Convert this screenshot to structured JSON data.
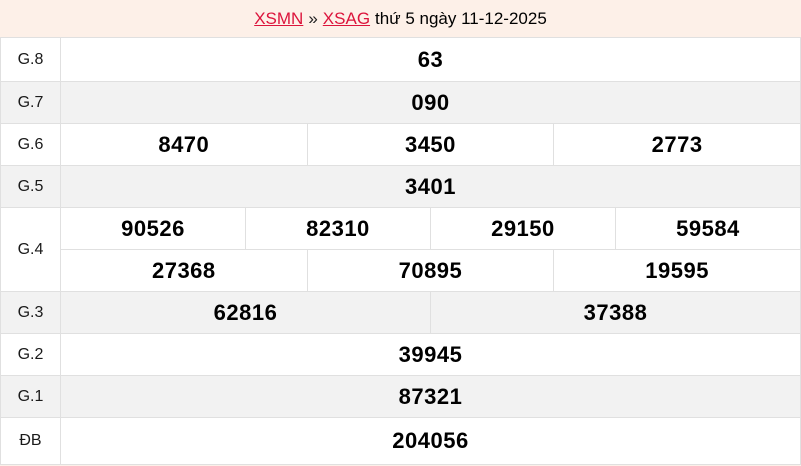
{
  "header": {
    "region_link": "XSMN",
    "separator": "»",
    "province_link": "XSAG",
    "draw_info": "thứ 5 ngày 11-12-2025"
  },
  "colors": {
    "page_background": "#fdf0e8",
    "link_crimson": "#dc143c",
    "highlight_red": "#e74c3c",
    "stripe_gray": "#f2f2f2",
    "border_gray": "#e0e0e0"
  },
  "table": {
    "rows": [
      {
        "label": "G.8",
        "values": [
          "63"
        ],
        "highlight": true
      },
      {
        "label": "G.7",
        "values": [
          "090"
        ]
      },
      {
        "label": "G.6",
        "values": [
          "8470",
          "3450",
          "2773"
        ]
      },
      {
        "label": "G.5",
        "values": [
          "3401"
        ]
      },
      {
        "label": "G.4",
        "values": [
          "90526",
          "82310",
          "29150",
          "59584",
          "27368",
          "70895",
          "19595"
        ]
      },
      {
        "label": "G.3",
        "values": [
          "62816",
          "37388"
        ]
      },
      {
        "label": "G.2",
        "values": [
          "39945"
        ]
      },
      {
        "label": "G.1",
        "values": [
          "87321"
        ]
      },
      {
        "label": "ĐB",
        "values": [
          "204056"
        ],
        "highlight": true
      }
    ]
  }
}
